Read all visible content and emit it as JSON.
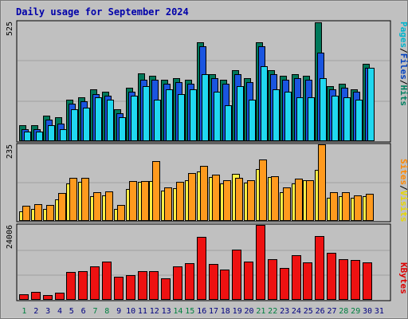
{
  "chart_data": {
    "type": "bar",
    "title": "Daily usage for September 2024",
    "days": [
      "1",
      "2",
      "3",
      "4",
      "5",
      "6",
      "7",
      "8",
      "9",
      "10",
      "11",
      "12",
      "13",
      "14",
      "15",
      "16",
      "17",
      "18",
      "19",
      "20",
      "21",
      "22",
      "23",
      "24",
      "25",
      "26",
      "27",
      "28",
      "29",
      "30",
      "31"
    ],
    "weekend_days": [
      1,
      7,
      8,
      14,
      15,
      21,
      22,
      28,
      29
    ],
    "panels": [
      {
        "id": "hits",
        "ymax_label": "525",
        "ymax": 525,
        "right_labels": [
          {
            "text": "Pages",
            "color": "#00b4cc"
          },
          {
            "text": "/",
            "color": "#000000"
          },
          {
            "text": "Files",
            "color": "#0040c0"
          },
          {
            "text": "/",
            "color": "#000000"
          },
          {
            "text": "Hits",
            "color": "#008060"
          }
        ],
        "series": [
          {
            "name": "Hits",
            "color": "#00785a",
            "values": [
              69,
              69,
              113,
              104,
              182,
              191,
              226,
              217,
              139,
              234,
              296,
              287,
              269,
              278,
              269,
              434,
              295,
              269,
              313,
              278,
              434,
              313,
              287,
              295,
              287,
              520,
              243,
              252,
              226,
              339,
              0
            ]
          },
          {
            "name": "Files",
            "color": "#1a55e0",
            "values": [
              52,
              52,
              95,
              78,
              165,
              174,
              208,
              200,
              122,
              217,
              270,
              269,
              252,
              260,
              252,
              417,
              278,
              252,
              295,
              260,
              417,
              295,
              269,
              278,
              269,
              390,
              226,
              234,
              217,
              321,
              0
            ]
          },
          {
            "name": "Pages",
            "color": "#20d8f0",
            "values": [
              43,
              43,
              69,
              52,
              139,
              148,
              191,
              182,
              104,
              200,
              243,
              182,
              226,
              208,
              226,
              295,
              217,
              156,
              243,
              182,
              330,
              226,
              217,
              191,
              191,
              278,
              200,
              191,
              182,
              321,
              0
            ]
          }
        ]
      },
      {
        "id": "visits",
        "ymax_label": "235",
        "ymax": 235,
        "right_labels": [
          {
            "text": "Sites",
            "color": "#ff8800"
          },
          {
            "text": "/",
            "color": "#000000"
          },
          {
            "text": "Visits",
            "color": "#e8d800"
          }
        ],
        "series": [
          {
            "name": "Visits",
            "color": "#ffee44",
            "values": [
              30,
              36,
              36,
              65,
              115,
              119,
              75,
              78,
              36,
              97,
              119,
              122,
              93,
              100,
              126,
              151,
              134,
              115,
              144,
              118,
              158,
              134,
              87,
              115,
              126,
              157,
              72,
              75,
              72,
              75,
              0
            ]
          },
          {
            "name": "Sites",
            "color": "#ff9a1e",
            "values": [
              47,
              51,
              50,
              86,
              133,
              133,
              89,
              90,
              50,
              122,
              122,
              183,
              104,
              119,
              148,
              169,
              141,
              126,
              133,
              126,
              188,
              137,
              104,
              129,
              126,
              235,
              87,
              87,
              79,
              83,
              0
            ]
          }
        ]
      },
      {
        "id": "kbytes",
        "ymax_label": "24006",
        "ymax": 24006,
        "right_labels": [
          {
            "text": "KBytes",
            "color": "#dd0000"
          }
        ],
        "series": [
          {
            "name": "KBytes",
            "color": "#ee1111",
            "values": [
              1850,
              2500,
              1500,
              2300,
              8900,
              9300,
              10800,
              12200,
              7300,
              7900,
              9300,
              9100,
              6800,
              10600,
              11800,
              20200,
              11600,
              9800,
              16200,
              12200,
              24006,
              13100,
              10300,
              14300,
              12100,
              20500,
              15000,
              12900,
              12800,
              12000,
              0
            ]
          }
        ]
      }
    ]
  }
}
